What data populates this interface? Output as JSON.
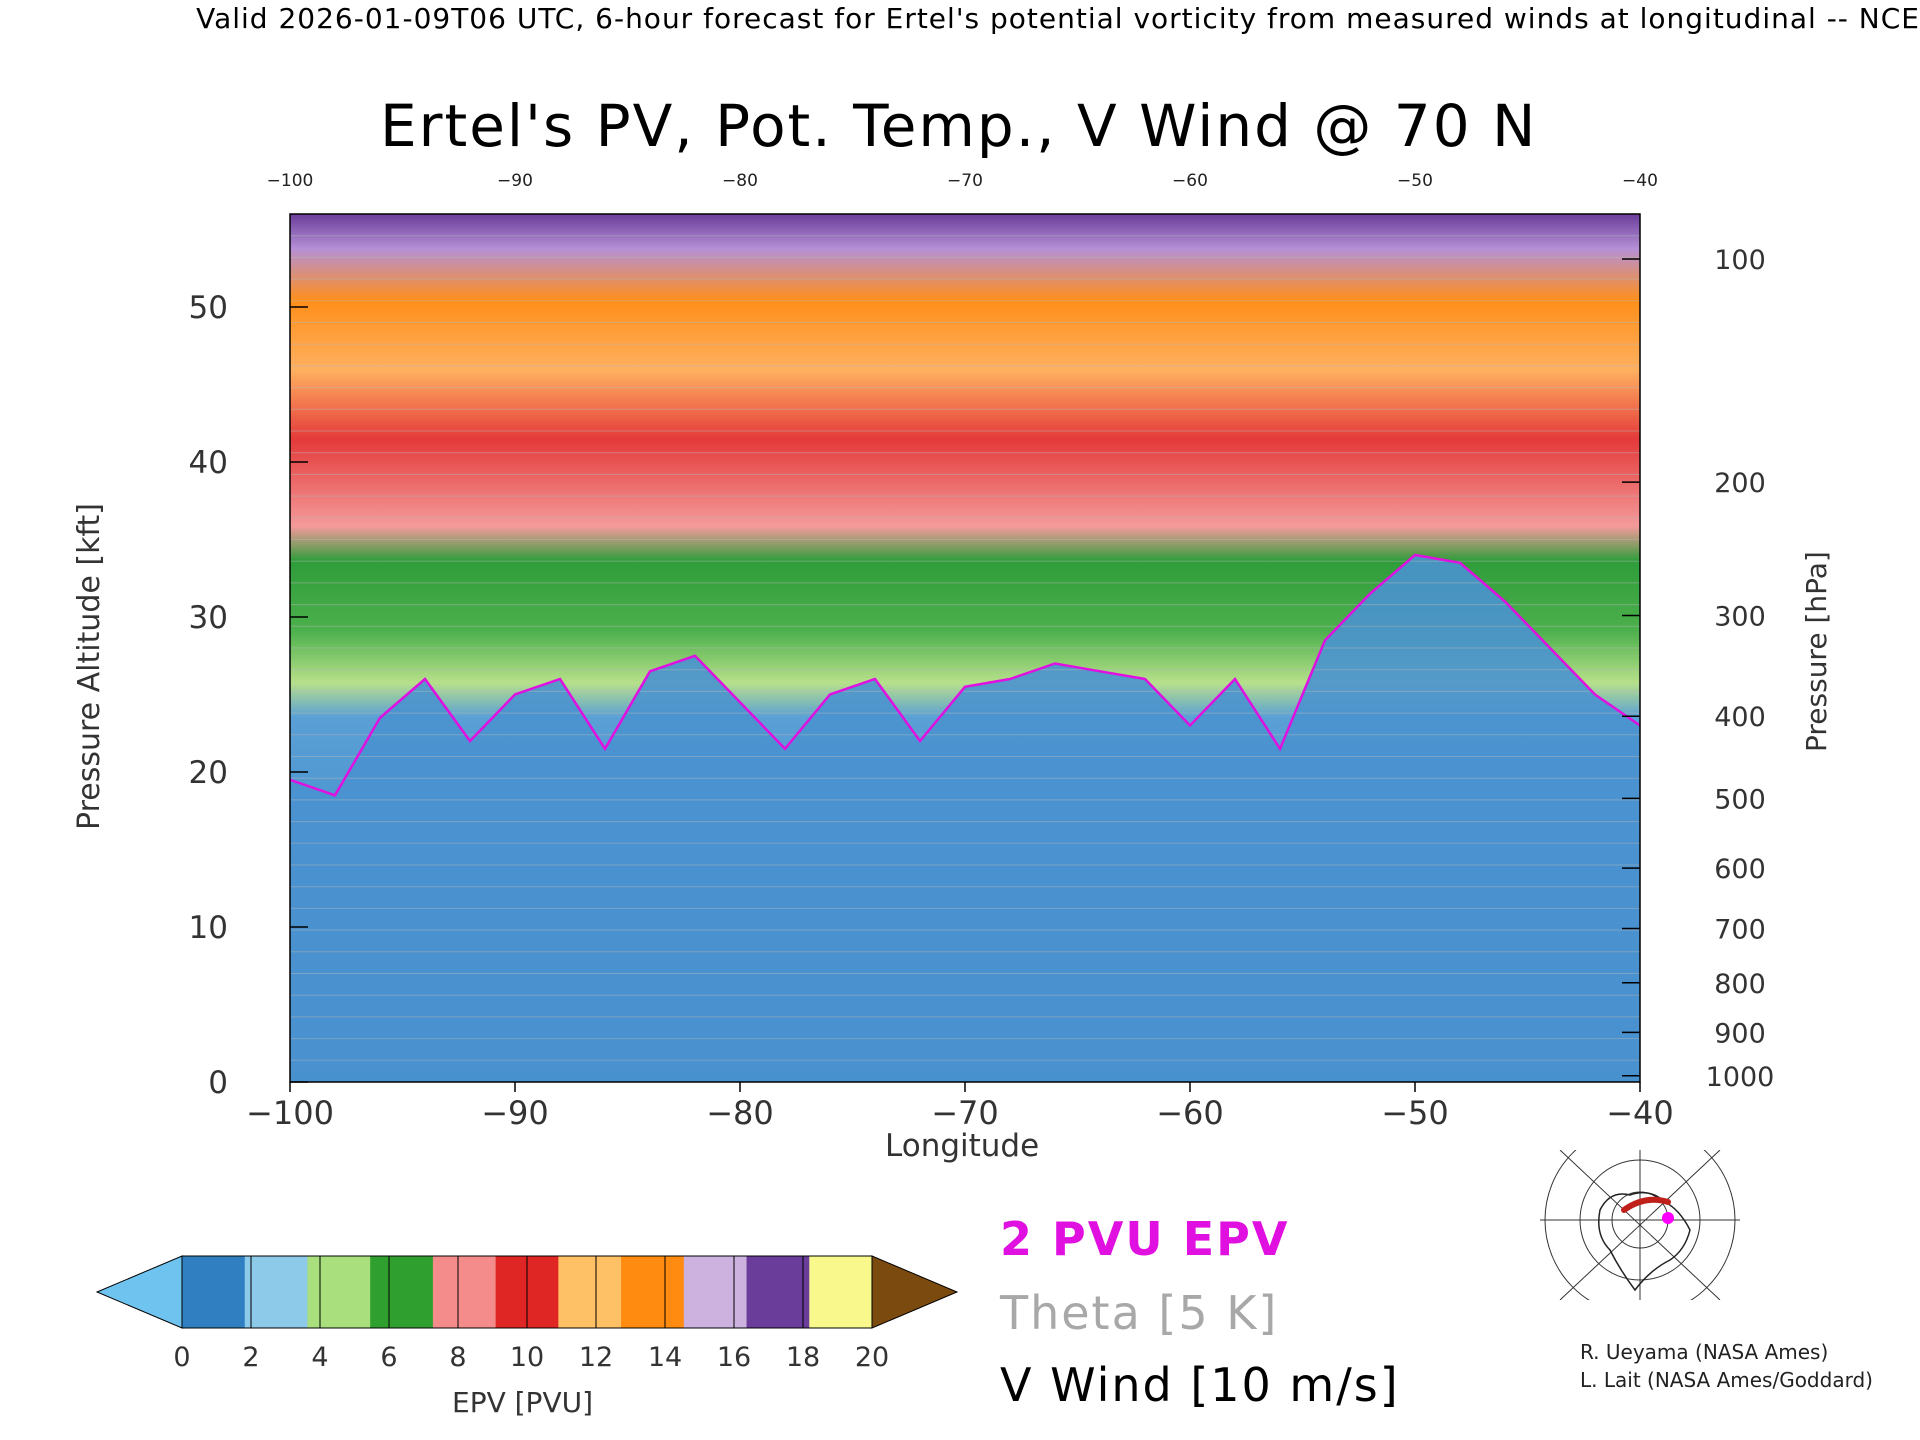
{
  "header": "Valid 2026-01-09T06 UTC, 6-hour forecast for Ertel's potential vorticity from measured winds at longitudinal -- NCE",
  "chart_data": {
    "type": "heatmap",
    "title": "Ertel's PV, Pot. Temp., V Wind @ 70 N",
    "xlabel": "Longitude",
    "ylabel_left": "Pressure Altitude [kft]",
    "ylabel_right": "Pressure [hPa]",
    "xlim": [
      -100,
      -40
    ],
    "ylim": [
      0,
      56
    ],
    "x_ticks": [
      -100,
      -90,
      -80,
      -70,
      -60,
      -50,
      -40
    ],
    "x_tick_labels": [
      "−100",
      "−90",
      "−80",
      "−70",
      "−60",
      "−50",
      "−40"
    ],
    "top_tick_labels": [
      "−100",
      "−90",
      "−80",
      "−70",
      "−60",
      "−50",
      "−40"
    ],
    "y_ticks": [
      0,
      10,
      20,
      30,
      40,
      50
    ],
    "y_tick_labels": [
      "0",
      "10",
      "20",
      "30",
      "40",
      "50"
    ],
    "pressure_ticks": [
      {
        "hPa": 100,
        "kft": 53.1,
        "label": "100"
      },
      {
        "hPa": 200,
        "kft": 38.7,
        "label": "200"
      },
      {
        "hPa": 300,
        "kft": 30.1,
        "label": "300"
      },
      {
        "hPa": 400,
        "kft": 23.6,
        "label": "400"
      },
      {
        "hPa": 500,
        "kft": 18.3,
        "label": "500"
      },
      {
        "hPa": 600,
        "kft": 13.8,
        "label": "600"
      },
      {
        "hPa": 700,
        "kft": 9.9,
        "label": "700"
      },
      {
        "hPa": 800,
        "kft": 6.4,
        "label": "800"
      },
      {
        "hPa": 900,
        "kft": 3.2,
        "label": "900"
      },
      {
        "hPa": 1000,
        "kft": 0.4,
        "label": "1000"
      }
    ],
    "pv_2pvu_height_kft": {
      "lon": [
        -100,
        -98,
        -96,
        -94,
        -92,
        -90,
        -88,
        -86,
        -84,
        -82,
        -80,
        -78,
        -76,
        -74,
        -72,
        -70,
        -68,
        -66,
        -64,
        -62,
        -60,
        -58,
        -56,
        -54,
        -52,
        -50,
        -48,
        -46,
        -44,
        -42,
        -40
      ],
      "height": [
        19.5,
        18.5,
        23.5,
        26,
        22,
        25,
        26,
        21.5,
        26.5,
        27.5,
        24.5,
        21.5,
        25,
        26,
        22,
        25.5,
        26,
        27,
        26.5,
        26,
        23,
        26,
        21.5,
        28.5,
        31.5,
        34,
        33.5,
        31,
        28,
        25,
        23
      ]
    },
    "colorbar": {
      "label": "EPV [PVU]",
      "ticks": [
        0,
        2,
        4,
        6,
        8,
        10,
        12,
        14,
        16,
        18,
        20
      ],
      "tick_labels": [
        "0",
        "2",
        "4",
        "6",
        "8",
        "10",
        "12",
        "14",
        "16",
        "18",
        "20"
      ],
      "colors": [
        "#6fc3ef",
        "#2f7fc1",
        "#8dc9e8",
        "#a9df7d",
        "#2fa02f",
        "#f48c8c",
        "#e02525",
        "#ffc166",
        "#ff8c10",
        "#cdb2e0",
        "#6a3d9a",
        "#f9f88c",
        "#7b4a0e"
      ]
    }
  },
  "legend": {
    "epv_contour": "2 PVU EPV",
    "theta": "Theta [5 K]",
    "vwind": "V Wind [10 m/s]"
  },
  "credits": {
    "line1": "R. Ueyama (NASA Ames)",
    "line2": "L. Lait (NASA Ames/Goddard)"
  },
  "colors": {
    "epv_contour": "#e010e0",
    "theta": "#a8a8a8",
    "vwind": "#000000"
  }
}
